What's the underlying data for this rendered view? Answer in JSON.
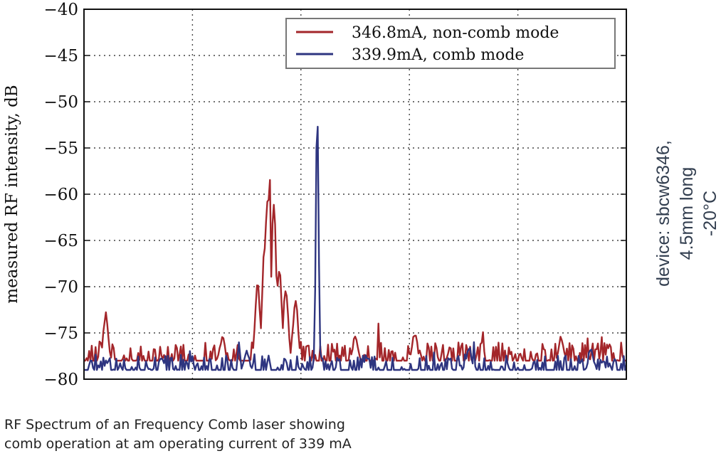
{
  "chart_data": {
    "type": "line",
    "ylabel": "measured RF intensity, dB",
    "xlabel": "",
    "ylim": [
      -80,
      -40
    ],
    "yticks": [
      "−40",
      "−45",
      "−50",
      "−55",
      "−60",
      "−65",
      "−70",
      "−75",
      "−80"
    ],
    "ytick_values": [
      -40,
      -45,
      -50,
      -55,
      -60,
      -65,
      -70,
      -75,
      -80
    ],
    "grid": true,
    "legend_position": "top-right",
    "series": [
      {
        "name": "346.8mA, non-comb mode",
        "color": "#a3262a",
        "peaks": [
          {
            "x": 0.04,
            "y": -73
          },
          {
            "x": 0.255,
            "y": -75.5
          },
          {
            "x": 0.32,
            "y": -69.5
          },
          {
            "x": 0.333,
            "y": -65.5
          },
          {
            "x": 0.338,
            "y": -60.5
          },
          {
            "x": 0.342,
            "y": -57
          },
          {
            "x": 0.35,
            "y": -61
          },
          {
            "x": 0.36,
            "y": -68
          },
          {
            "x": 0.372,
            "y": -70.2
          },
          {
            "x": 0.39,
            "y": -71.5
          },
          {
            "x": 0.5,
            "y": -75.5
          },
          {
            "x": 0.61,
            "y": -75
          },
          {
            "x": 0.88,
            "y": -75.5
          }
        ],
        "baseline": -78,
        "noise_amplitude": 2
      },
      {
        "name": "339.9mA, comb mode",
        "color": "#2e3580",
        "peaks": [
          {
            "x": 0.43,
            "y": -50.5
          },
          {
            "x": 0.3,
            "y": -77
          },
          {
            "x": 0.52,
            "y": -77.5
          },
          {
            "x": 0.71,
            "y": -76.5
          },
          {
            "x": 0.935,
            "y": -77
          }
        ],
        "baseline": -79,
        "noise_amplitude": 1.6
      }
    ]
  },
  "annotation": {
    "line1": "device: sbcw6346,",
    "line2": "4.5mm long",
    "line3": "-20°C"
  },
  "caption": {
    "line1": "RF Spectrum of an Frequency Comb laser showing",
    "line2": "comb operation at am operating current of 339 mA"
  }
}
